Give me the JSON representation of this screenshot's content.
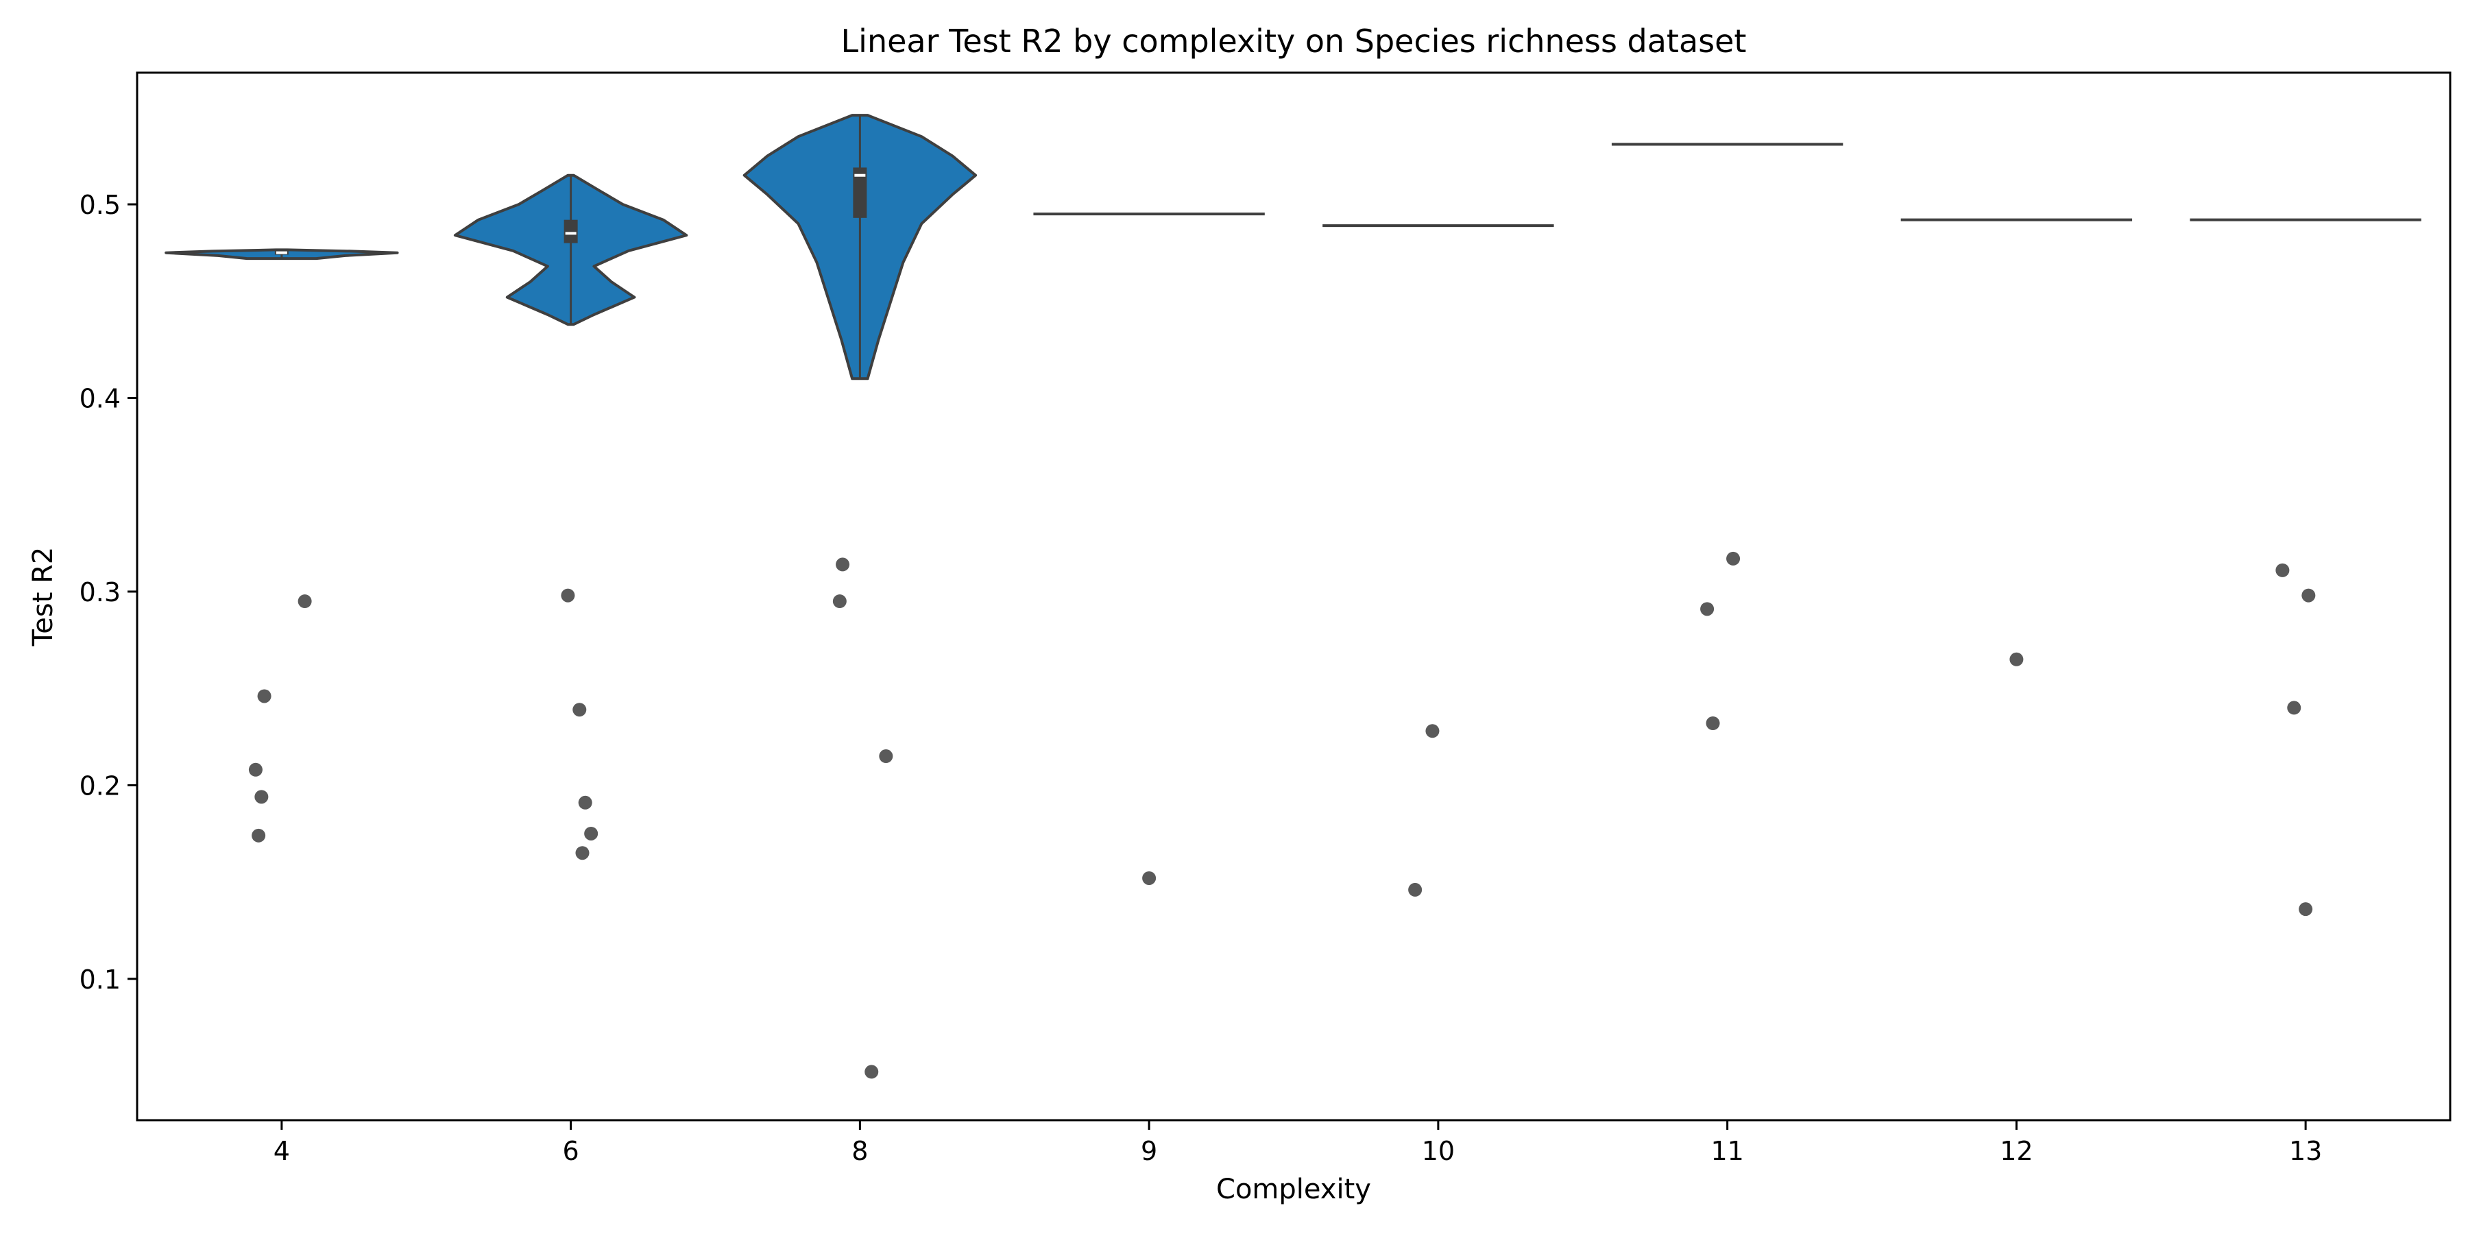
{
  "chart_data": {
    "type": "violin",
    "title": "Linear Test R2 by complexity on Species richness dataset",
    "xlabel": "Complexity",
    "ylabel": "Test R2",
    "categories": [
      "4",
      "6",
      "8",
      "9",
      "10",
      "11",
      "12",
      "13"
    ],
    "ylim": [
      0.027,
      0.568
    ],
    "yticks": [
      0.1,
      0.2,
      0.3,
      0.4,
      0.5
    ],
    "ytick_labels": [
      "0.1",
      "0.2",
      "0.3",
      "0.4",
      "0.5"
    ],
    "grid": false,
    "legend": "none",
    "colors": {
      "violin_fill": "#1f77b4",
      "violin_edge": "#3f3f3f",
      "points": "#5a5a5a"
    },
    "violins": [
      {
        "category": "4",
        "min": 0.472,
        "max": 0.4765,
        "median": 0.475,
        "q1": 0.474,
        "q3": 0.476,
        "profile": [
          [
            0.472,
            0.3
          ],
          [
            0.4735,
            0.55
          ],
          [
            0.475,
            1.0
          ],
          [
            0.4758,
            0.6
          ],
          [
            0.4765,
            0.05
          ]
        ]
      },
      {
        "category": "6",
        "min": 0.438,
        "max": 0.515,
        "median": 0.485,
        "q1": 0.48,
        "q3": 0.492,
        "profile": [
          [
            0.438,
            0.005
          ],
          [
            0.443,
            0.04
          ],
          [
            0.452,
            0.11
          ],
          [
            0.46,
            0.07
          ],
          [
            0.468,
            0.04
          ],
          [
            0.476,
            0.1
          ],
          [
            0.484,
            0.2
          ],
          [
            0.492,
            0.16
          ],
          [
            0.5,
            0.09
          ],
          [
            0.507,
            0.05
          ],
          [
            0.515,
            0.005
          ]
        ]
      },
      {
        "category": "8",
        "min": 0.41,
        "max": 0.546,
        "median": 0.515,
        "q1": 0.493,
        "q3": 0.519,
        "profile": [
          [
            0.41,
            0.005
          ],
          [
            0.43,
            0.012
          ],
          [
            0.45,
            0.02
          ],
          [
            0.47,
            0.028
          ],
          [
            0.49,
            0.04
          ],
          [
            0.505,
            0.06
          ],
          [
            0.515,
            0.075
          ],
          [
            0.525,
            0.06
          ],
          [
            0.535,
            0.04
          ],
          [
            0.546,
            0.005
          ]
        ]
      },
      {
        "category": "9",
        "value": 0.495
      },
      {
        "category": "10",
        "value": 0.489
      },
      {
        "category": "11",
        "value": 0.531
      },
      {
        "category": "12",
        "value": 0.492
      },
      {
        "category": "13",
        "value": 0.492
      }
    ],
    "points": [
      {
        "category": "4",
        "y": [
          0.295,
          0.246,
          0.208,
          0.194,
          0.174
        ],
        "jitter": [
          0.08,
          -0.06,
          -0.09,
          -0.07,
          -0.08
        ]
      },
      {
        "category": "6",
        "y": [
          0.298,
          0.239,
          0.191,
          0.175,
          0.165
        ],
        "jitter": [
          -0.01,
          0.03,
          0.05,
          0.07,
          0.04
        ]
      },
      {
        "category": "8",
        "y": [
          0.314,
          0.295,
          0.215,
          0.052
        ],
        "jitter": [
          -0.06,
          -0.07,
          0.09,
          0.04
        ]
      },
      {
        "category": "9",
        "y": [
          0.152
        ],
        "jitter": [
          0.0
        ]
      },
      {
        "category": "10",
        "y": [
          0.228,
          0.146
        ],
        "jitter": [
          -0.02,
          -0.08
        ]
      },
      {
        "category": "11",
        "y": [
          0.317,
          0.291,
          0.232
        ],
        "jitter": [
          0.02,
          -0.07,
          -0.05
        ]
      },
      {
        "category": "12",
        "y": [
          0.265
        ],
        "jitter": [
          0.0
        ]
      },
      {
        "category": "13",
        "y": [
          0.311,
          0.298,
          0.24,
          0.136
        ],
        "jitter": [
          -0.08,
          0.01,
          -0.04,
          0.0
        ]
      }
    ]
  }
}
